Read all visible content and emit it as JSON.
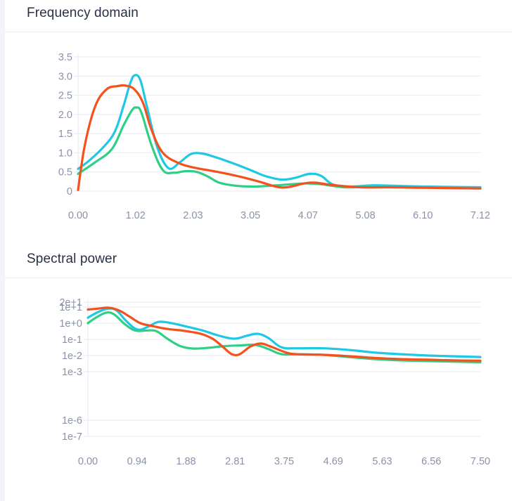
{
  "panels": [
    {
      "title": "Frequency domain"
    },
    {
      "title": "Spectral power"
    }
  ],
  "colors": {
    "cyan": "#1ec8e6",
    "green": "#2fd086",
    "red": "#f4511e",
    "grid": "#e6e8ef",
    "tick_text": "#8a92a8",
    "title": "#2a3046"
  },
  "chart_data": [
    {
      "type": "line",
      "title": "Frequency domain",
      "xlabel": "",
      "ylabel": "",
      "x_ticks": [
        "0.00",
        "1.02",
        "2.03",
        "3.05",
        "4.07",
        "5.08",
        "6.10",
        "7.12"
      ],
      "y_ticks": [
        "0",
        "0.5",
        "1.0",
        "1.5",
        "2.0",
        "2.5",
        "3.0",
        "3.5"
      ],
      "xlim": [
        0,
        7.12
      ],
      "ylim": [
        0,
        3.5
      ],
      "grid": true,
      "series": [
        {
          "color": "#1ec8e6",
          "x": [
            0,
            0.2,
            0.45,
            0.65,
            0.8,
            0.92,
            1.0,
            1.1,
            1.22,
            1.4,
            1.6,
            1.8,
            2.0,
            2.2,
            2.4,
            2.7,
            3.05,
            3.3,
            3.6,
            3.85,
            4.1,
            4.3,
            4.5,
            4.8,
            5.2,
            5.6,
            6.1,
            6.6,
            7.12
          ],
          "y": [
            0.58,
            0.8,
            1.15,
            1.55,
            2.2,
            2.8,
            3.02,
            2.9,
            2.2,
            1.15,
            0.6,
            0.75,
            0.97,
            0.98,
            0.9,
            0.75,
            0.55,
            0.4,
            0.3,
            0.35,
            0.45,
            0.4,
            0.18,
            0.12,
            0.15,
            0.14,
            0.12,
            0.11,
            0.1
          ]
        },
        {
          "color": "#2fd086",
          "x": [
            0,
            0.3,
            0.6,
            0.8,
            0.95,
            1.03,
            1.12,
            1.3,
            1.5,
            1.7,
            1.9,
            2.1,
            2.3,
            2.5,
            2.8,
            3.1,
            3.5,
            4.0,
            4.3,
            4.7,
            5.1,
            5.6,
            6.1,
            6.6,
            7.12
          ],
          "y": [
            0.45,
            0.75,
            1.1,
            1.7,
            2.1,
            2.18,
            2.05,
            1.2,
            0.55,
            0.48,
            0.52,
            0.5,
            0.38,
            0.22,
            0.14,
            0.12,
            0.15,
            0.2,
            0.18,
            0.1,
            0.11,
            0.1,
            0.1,
            0.08,
            0.07
          ]
        },
        {
          "color": "#f4511e",
          "x": [
            0,
            0.12,
            0.3,
            0.5,
            0.7,
            0.85,
            1.0,
            1.15,
            1.3,
            1.5,
            1.8,
            2.1,
            2.4,
            2.8,
            3.2,
            3.5,
            3.7,
            4.0,
            4.2,
            4.5,
            5.0,
            5.5,
            6.0,
            6.5,
            7.12
          ],
          "y": [
            0.03,
            1.2,
            2.2,
            2.65,
            2.74,
            2.75,
            2.65,
            2.3,
            1.6,
            1.0,
            0.72,
            0.6,
            0.52,
            0.4,
            0.25,
            0.12,
            0.1,
            0.2,
            0.22,
            0.16,
            0.1,
            0.1,
            0.09,
            0.08,
            0.07
          ]
        }
      ]
    },
    {
      "type": "line",
      "title": "Spectral power",
      "xlabel": "",
      "ylabel": "",
      "y_scale": "log",
      "x_ticks": [
        "0.00",
        "0.94",
        "1.88",
        "2.81",
        "3.75",
        "4.69",
        "5.63",
        "6.56",
        "7.50"
      ],
      "y_ticks": [
        {
          "label": "1e-7",
          "value": 1e-07
        },
        {
          "label": "1e-6",
          "value": 1e-06
        },
        {
          "label": "1e-3",
          "value": 0.001
        },
        {
          "label": "1e-2",
          "value": 0.01
        },
        {
          "label": "1e-1",
          "value": 0.1
        },
        {
          "label": "1e+0",
          "value": 1
        },
        {
          "label": "1e+1",
          "value": 10
        },
        {
          "label": "2e+1",
          "value": 20
        }
      ],
      "xlim": [
        0,
        7.5
      ],
      "ylim": [
        1e-07,
        20
      ],
      "grid": true,
      "series": [
        {
          "color": "#1ec8e6",
          "x": [
            0,
            0.2,
            0.4,
            0.55,
            0.75,
            0.95,
            1.15,
            1.35,
            1.6,
            1.9,
            2.2,
            2.5,
            2.8,
            3.05,
            3.25,
            3.45,
            3.7,
            4.0,
            4.5,
            5.0,
            5.5,
            6.0,
            6.5,
            7.0,
            7.5
          ],
          "y": [
            2.2,
            5,
            8,
            6,
            1.2,
            0.4,
            0.6,
            1.2,
            1.0,
            0.6,
            0.35,
            0.17,
            0.11,
            0.17,
            0.22,
            0.12,
            0.032,
            0.028,
            0.028,
            0.022,
            0.015,
            0.012,
            0.01,
            0.009,
            0.008
          ]
        },
        {
          "color": "#2fd086",
          "x": [
            0,
            0.15,
            0.35,
            0.5,
            0.7,
            0.9,
            1.1,
            1.3,
            1.5,
            1.75,
            2.0,
            2.3,
            2.6,
            2.9,
            3.2,
            3.45,
            3.7,
            4.0,
            4.5,
            5.0,
            5.5,
            6.0,
            6.5,
            7.0,
            7.5
          ],
          "y": [
            1.0,
            2.2,
            4.5,
            3.5,
            0.9,
            0.35,
            0.35,
            0.33,
            0.12,
            0.04,
            0.027,
            0.03,
            0.038,
            0.042,
            0.045,
            0.025,
            0.012,
            0.012,
            0.011,
            0.008,
            0.006,
            0.005,
            0.0045,
            0.0042,
            0.0038
          ]
        },
        {
          "color": "#f4511e",
          "x": [
            0,
            0.2,
            0.4,
            0.6,
            0.8,
            1.0,
            1.2,
            1.5,
            1.8,
            2.0,
            2.2,
            2.4,
            2.6,
            2.75,
            2.9,
            3.1,
            3.3,
            3.5,
            3.8,
            4.0,
            4.5,
            5.0,
            5.5,
            6.0,
            6.5,
            7.0,
            7.5
          ],
          "y": [
            7,
            8,
            9,
            6,
            2.5,
            1.0,
            0.7,
            0.45,
            0.35,
            0.28,
            0.2,
            0.1,
            0.03,
            0.012,
            0.012,
            0.035,
            0.055,
            0.035,
            0.015,
            0.012,
            0.011,
            0.009,
            0.007,
            0.006,
            0.0055,
            0.005,
            0.0048
          ]
        }
      ]
    }
  ]
}
